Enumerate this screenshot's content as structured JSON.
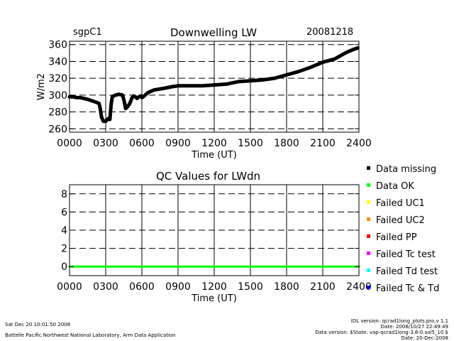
{
  "header": {
    "site": "sgpC1",
    "date": "20081218"
  },
  "chart_data": [
    {
      "type": "line",
      "title": "Downwelling LW",
      "xlabel": "Time (UT)",
      "ylabel": "W/m2",
      "xlim": [
        0,
        2400
      ],
      "ylim": [
        256,
        364
      ],
      "x_ticks": [
        "0000",
        "0300",
        "0600",
        "0900",
        "1200",
        "1500",
        "1800",
        "2100",
        "2400"
      ],
      "y_ticks": [
        "260",
        "280",
        "300",
        "320",
        "340",
        "360"
      ],
      "y_tick_values": [
        260,
        280,
        300,
        320,
        340,
        360
      ],
      "grid": true,
      "series": [
        {
          "color": "#000000",
          "points": [
            [
              0,
              298
            ],
            [
              30,
              298
            ],
            [
              60,
              297
            ],
            [
              90,
              297
            ],
            [
              120,
              296
            ],
            [
              150,
              295
            ],
            [
              170,
              294
            ],
            [
              190,
              293
            ],
            [
              210,
              292
            ],
            [
              230,
              291
            ],
            [
              245,
              290
            ],
            [
              255,
              284
            ],
            [
              265,
              274
            ],
            [
              280,
              269
            ],
            [
              300,
              269
            ],
            [
              320,
              272
            ],
            [
              335,
              271
            ],
            [
              345,
              289
            ],
            [
              355,
              298
            ],
            [
              380,
              300
            ],
            [
              410,
              301
            ],
            [
              440,
              300
            ],
            [
              455,
              292
            ],
            [
              465,
              284
            ],
            [
              480,
              286
            ],
            [
              500,
              290
            ],
            [
              515,
              296
            ],
            [
              530,
              299
            ],
            [
              545,
              298
            ],
            [
              560,
              296
            ],
            [
              575,
              298
            ],
            [
              590,
              299
            ],
            [
              600,
              297
            ],
            [
              620,
              299
            ],
            [
              650,
              303
            ],
            [
              700,
              306
            ],
            [
              780,
              308
            ],
            [
              850,
              310
            ],
            [
              900,
              311
            ],
            [
              1000,
              311
            ],
            [
              1100,
              311
            ],
            [
              1200,
              312
            ],
            [
              1300,
              313
            ],
            [
              1400,
              316
            ],
            [
              1500,
              317
            ],
            [
              1600,
              318
            ],
            [
              1700,
              320
            ],
            [
              1800,
              324
            ],
            [
              1900,
              328
            ],
            [
              2000,
              333
            ],
            [
              2100,
              339
            ],
            [
              2150,
              341
            ],
            [
              2200,
              343
            ],
            [
              2250,
              347
            ],
            [
              2300,
              351
            ],
            [
              2350,
              354
            ],
            [
              2390,
              356
            ]
          ]
        }
      ]
    },
    {
      "type": "line",
      "title": "QC Values for LWdn",
      "xlabel": "Time (UT)",
      "ylabel": "",
      "xlim": [
        0,
        2400
      ],
      "ylim": [
        -1,
        9
      ],
      "x_ticks": [
        "0000",
        "0300",
        "0600",
        "0900",
        "1200",
        "1500",
        "1800",
        "2100",
        "2400"
      ],
      "y_ticks": [
        "0",
        "2",
        "4",
        "6",
        "8"
      ],
      "y_tick_values": [
        0,
        2,
        4,
        6,
        8
      ],
      "grid": true,
      "series": [
        {
          "name": "Data OK",
          "color": "#00ff00",
          "points": [
            [
              0,
              0
            ],
            [
              2400,
              0
            ]
          ]
        }
      ]
    }
  ],
  "legend": [
    {
      "label": "Data missing",
      "color": "#000000"
    },
    {
      "label": "Data OK",
      "color": "#00ff00"
    },
    {
      "label": "Failed UC1",
      "color": "#ffff00"
    },
    {
      "label": "Failed UC2",
      "color": "#ff8c00"
    },
    {
      "label": "Failed PP",
      "color": "#ff0000"
    },
    {
      "label": "Failed Tc test",
      "color": "#ff00ff"
    },
    {
      "label": "Failed Td test",
      "color": "#00ffff"
    },
    {
      "label": "Failed Tc & Td",
      "color": "#0000ff"
    }
  ],
  "footer": {
    "timestamp": "Sat Dec 20 10:01:50 2008",
    "lab": "Battelle Pacific Northwest National Laboratory, Arm Data Application",
    "idl_version": "IDL version: qcrad1long_plots.pro,v 1.1",
    "idl_date": "Date: 2008/10/27 22:49:49",
    "data_version": "Data version: $State: vap-qcrad1long-3.8-0.sol5_10 $",
    "data_date": "Date: 20-Dec-2008"
  }
}
